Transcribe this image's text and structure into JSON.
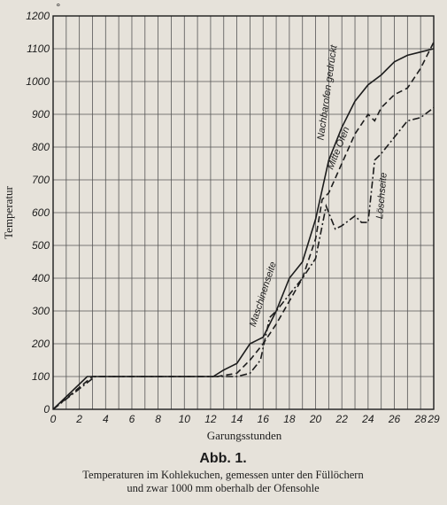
{
  "chart_data": {
    "type": "line",
    "ylabel": "Temperatur",
    "xlabel": "Garungsstunden",
    "figure_label": "Abb. 1.",
    "caption": [
      "Temperaturen im Kohlekuchen, gemessen unter den Füllöchern",
      "und zwar 1000 mm oberhalb der Ofensohle"
    ],
    "unit": "°",
    "xlim": [
      0,
      29
    ],
    "ylim": [
      0,
      1200
    ],
    "xticks": [
      0,
      2,
      4,
      6,
      8,
      10,
      12,
      14,
      16,
      18,
      20,
      22,
      24,
      26,
      28,
      29
    ],
    "yticks": [
      0,
      100,
      200,
      300,
      400,
      500,
      600,
      700,
      800,
      900,
      1000,
      1100,
      1200
    ],
    "xgrid": [
      0,
      1,
      2,
      3,
      4,
      5,
      6,
      7,
      8,
      9,
      10,
      11,
      12,
      13,
      14,
      15,
      16,
      17,
      18,
      19,
      20,
      21,
      22,
      23,
      24,
      25,
      26,
      27,
      28,
      29
    ],
    "grid": true,
    "series": [
      {
        "name": "Maschinenseite",
        "color": "#1c1c1c",
        "dash": "solid",
        "x": [
          0,
          2.6,
          12.2,
          13,
          14,
          15,
          15.5,
          16,
          17,
          18,
          19,
          20,
          21,
          22,
          23,
          24,
          25,
          26,
          27,
          28,
          29
        ],
        "values": [
          0,
          100,
          100,
          120,
          140,
          200,
          210,
          220,
          300,
          400,
          450,
          580,
          760,
          860,
          940,
          990,
          1020,
          1060,
          1080,
          1090,
          1100
        ]
      },
      {
        "name": "Mitte Ofen",
        "color": "#1c1c1c",
        "dash": "dashed",
        "x": [
          0,
          3,
          12.5,
          14,
          15,
          16,
          17,
          18,
          19,
          20,
          20.5,
          21,
          22,
          23,
          24,
          24.5,
          25,
          26,
          27,
          28,
          29
        ],
        "values": [
          0,
          100,
          100,
          110,
          150,
          200,
          260,
          330,
          400,
          520,
          640,
          660,
          750,
          840,
          900,
          880,
          920,
          960,
          980,
          1040,
          1120
        ]
      },
      {
        "name": "Löschseite",
        "color": "#1c1c1c",
        "dash": "dashdot",
        "x": [
          0,
          3.2,
          14,
          15,
          15.8,
          16.5,
          17,
          18,
          19,
          20,
          20.8,
          21.5,
          22,
          23,
          23.5,
          24,
          24.5,
          25,
          26,
          27,
          28,
          29
        ],
        "values": [
          0,
          100,
          100,
          110,
          150,
          280,
          300,
          350,
          400,
          460,
          620,
          550,
          560,
          590,
          570,
          570,
          760,
          780,
          830,
          880,
          890,
          920
        ]
      }
    ],
    "annotations": [
      {
        "text": "Nachbarofen gedrückt",
        "x": 20.6,
        "y": 820
      }
    ]
  }
}
